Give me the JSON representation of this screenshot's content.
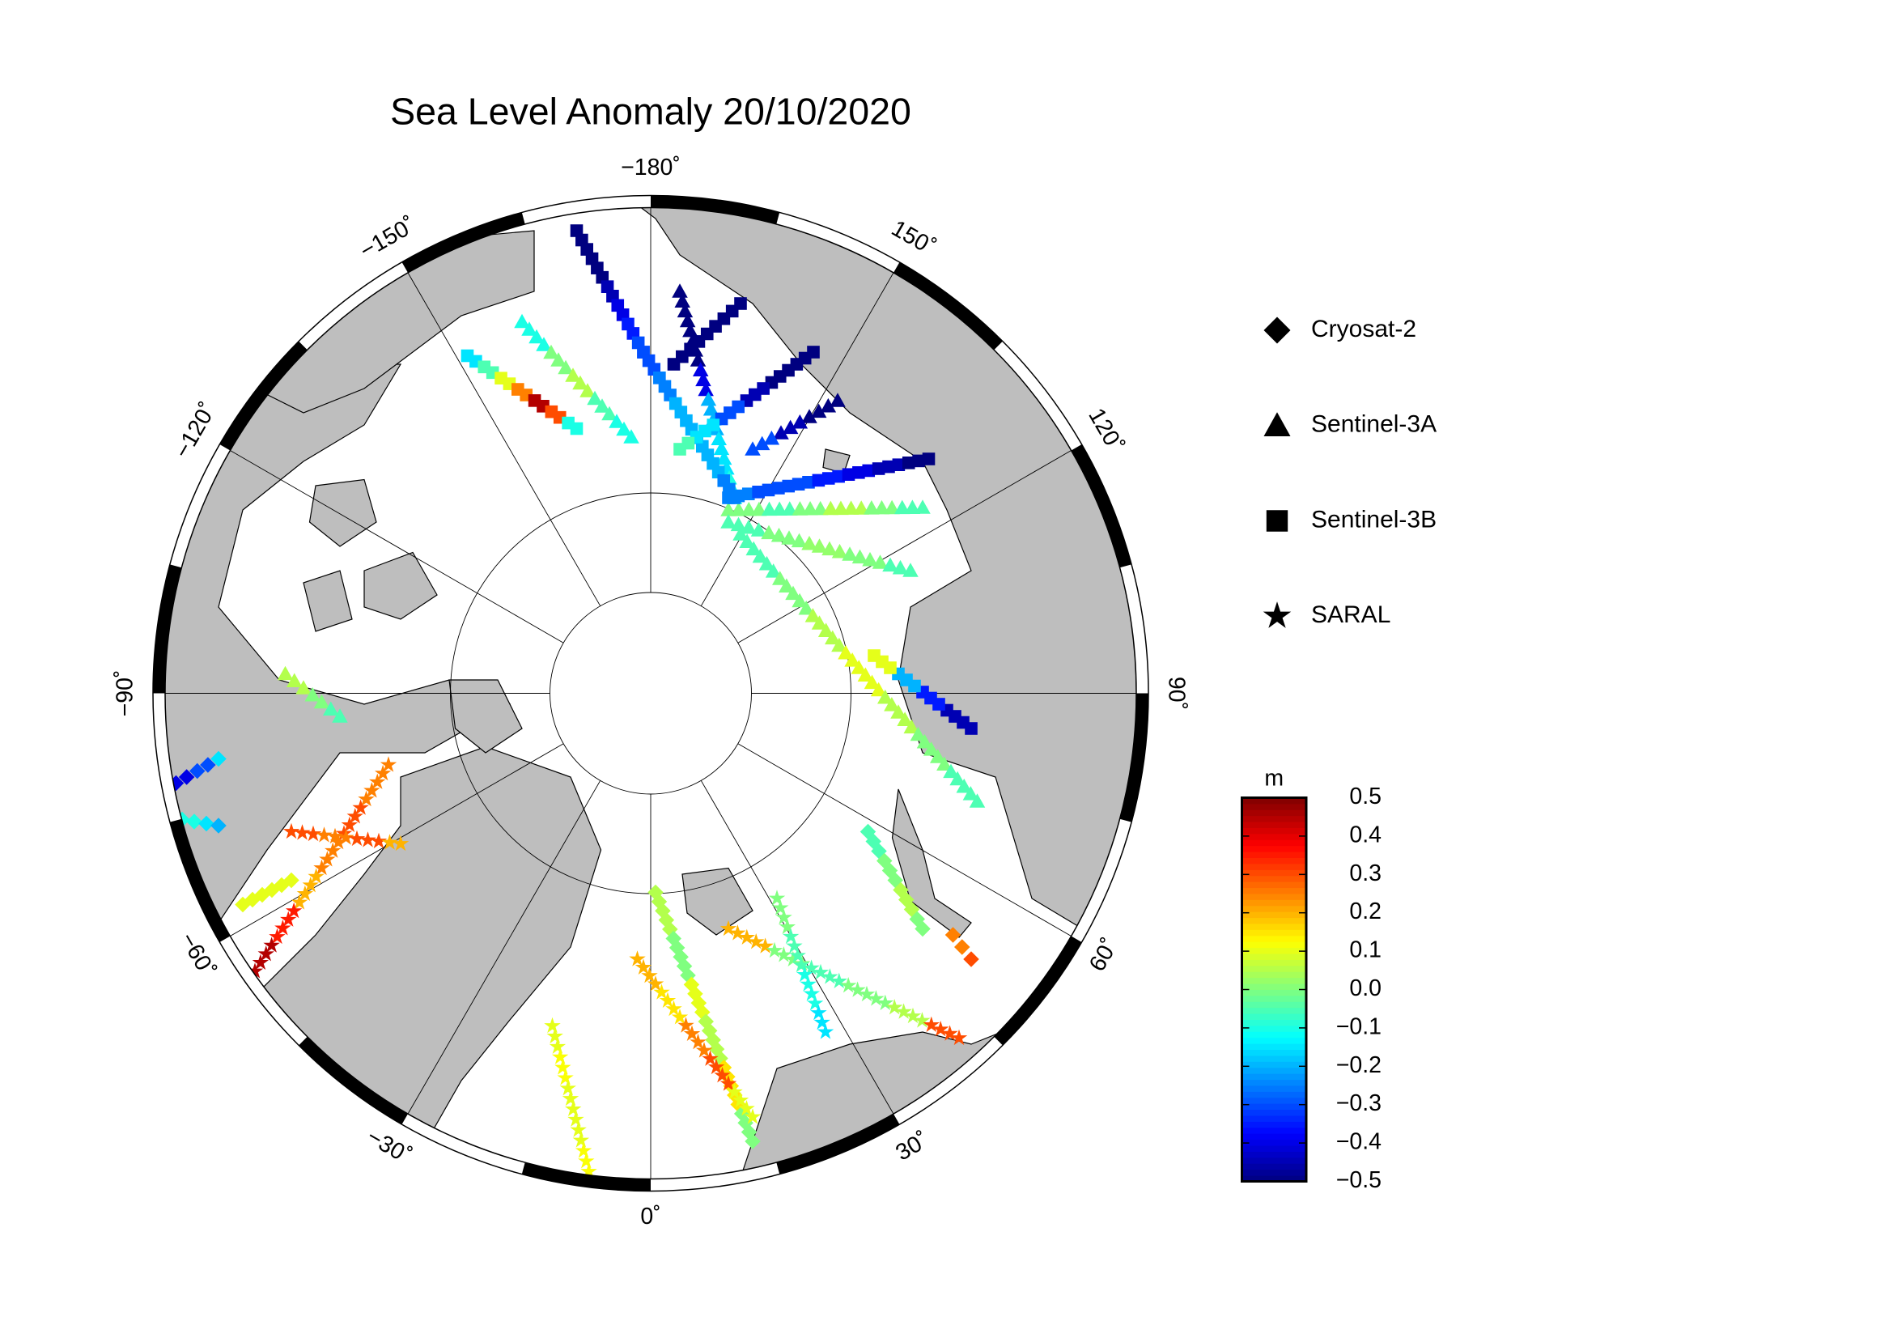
{
  "title": "Sea Level Anomaly 20/10/2020",
  "lon_labels": [
    {
      "value": -180,
      "label": "−180˚"
    },
    {
      "value": -150,
      "label": "−150˚"
    },
    {
      "value": -120,
      "label": "−120˚"
    },
    {
      "value": -90,
      "label": "−90˚"
    },
    {
      "value": -60,
      "label": "−60˚"
    },
    {
      "value": -30,
      "label": "−30˚"
    },
    {
      "value": 0,
      "label": "0˚"
    },
    {
      "value": 30,
      "label": "30˚"
    },
    {
      "value": 60,
      "label": "60˚"
    },
    {
      "value": 90,
      "label": "90˚"
    },
    {
      "value": 120,
      "label": "120˚"
    },
    {
      "value": 150,
      "label": "150˚"
    }
  ],
  "colorbar": {
    "unit": "m",
    "clim": [
      -0.5,
      0.5
    ],
    "ticks": [
      0.5,
      0.4,
      0.3,
      0.2,
      0.1,
      {
        "value": 0,
        "label": "0.0"
      },
      {
        "value": -0.1,
        "label": "−0.1"
      },
      {
        "value": -0.2,
        "label": "−0.2"
      },
      {
        "value": -0.3,
        "label": "−0.3"
      },
      {
        "value": -0.4,
        "label": "−0.4"
      },
      {
        "value": -0.5,
        "label": "−0.5"
      }
    ]
  },
  "satellites": [
    {
      "name": "Cryosat-2",
      "marker": "diamond",
      "tracks": [
        {
          "values": [
            0.1,
            0.1,
            0.1
          ]
        },
        {
          "values": [
            -0.05,
            0,
            0.05,
            0
          ]
        },
        {
          "values": [
            0.05,
            0,
            0.1,
            0.05,
            0.15,
            0
          ]
        },
        {
          "values": [
            0.25,
            0.3
          ]
        },
        {
          "values": [
            -0.4,
            -0.3,
            -0.15
          ]
        },
        {
          "values": [
            -0.1,
            -0.15,
            -0.2
          ]
        }
      ]
    },
    {
      "name": "Sentinel-3A",
      "marker": "triangle",
      "tracks": [
        {
          "values": [
            -0.5,
            -0.5,
            -0.4,
            -0.2,
            -0.15,
            -0.1
          ]
        },
        {
          "values": [
            -0.5,
            -0.45,
            -0.3
          ]
        },
        {
          "values": [
            0,
            -0.05,
            0,
            0.05,
            0,
            -0.05
          ]
        },
        {
          "values": [
            -0.05,
            0,
            0.02,
            0,
            -0.05
          ]
        },
        {
          "values": [
            -0.1,
            0,
            0.05,
            -0.05,
            -0.1
          ]
        },
        {
          "values": [
            -0.05,
            0,
            0.05,
            0.1,
            0.05,
            0,
            -0.05
          ]
        },
        {
          "values": [
            0.05,
            0,
            -0.05
          ]
        }
      ]
    },
    {
      "name": "Sentinel-3B",
      "marker": "square",
      "tracks": [
        {
          "values": [
            -0.5,
            -0.5,
            -0.5,
            -0.45,
            -0.4,
            -0.35,
            -0.3
          ]
        },
        {
          "values": [
            -0.3,
            -0.25,
            -0.2,
            -0.2,
            -0.2,
            -0.25
          ]
        },
        {
          "values": [
            -0.25,
            -0.3,
            -0.3,
            -0.35,
            -0.4,
            -0.45,
            -0.5
          ]
        },
        {
          "values": [
            -0.15,
            -0.05,
            0.1,
            0.25,
            0.45,
            0.3,
            -0.1
          ]
        },
        {
          "values": [
            -0.5,
            -0.5,
            -0.45,
            -0.3,
            -0.15,
            -0.05
          ]
        },
        {
          "values": [
            -0.5,
            -0.5,
            -0.5
          ]
        },
        {
          "values": [
            -0.45,
            -0.35,
            -0.2,
            0.1
          ]
        }
      ]
    },
    {
      "name": "SARAL",
      "marker": "star",
      "tracks": [
        {
          "values": [
            0.25,
            0.3,
            0.25,
            0.2,
            0.35,
            0.45
          ]
        },
        {
          "values": [
            0.3,
            0.25,
            0.3,
            0.2
          ]
        },
        {
          "values": [
            0.2,
            0.15,
            0.25,
            0.3,
            0.1
          ]
        },
        {
          "values": [
            0.1,
            0.12,
            0.1,
            0.1,
            0.12
          ]
        },
        {
          "values": [
            0.2,
            0,
            -0.05,
            0,
            0.05,
            0.3
          ]
        },
        {
          "values": [
            0,
            -0.05,
            -0.1,
            -0.15
          ]
        }
      ]
    }
  ]
}
